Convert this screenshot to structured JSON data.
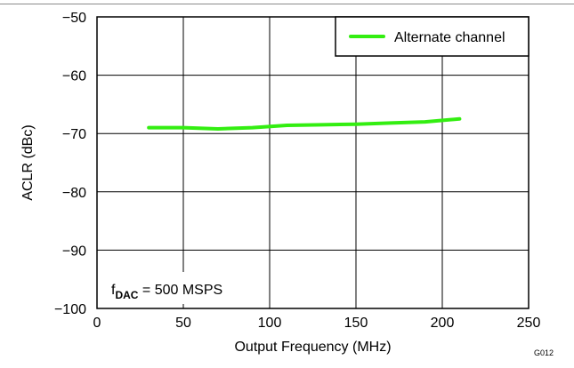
{
  "chart_data": {
    "type": "line",
    "xlabel": "Output Frequency (MHz)",
    "ylabel": "ACLR (dBc)",
    "xlim": [
      0,
      250
    ],
    "ylim": [
      -100,
      -50
    ],
    "xticks": [
      0,
      50,
      100,
      150,
      200,
      250
    ],
    "yticks": [
      -50,
      -60,
      -70,
      -80,
      -90,
      -100
    ],
    "x_tick_labels": [
      "0",
      "50",
      "100",
      "150",
      "200",
      "250"
    ],
    "y_tick_labels": [
      "−50",
      "−60",
      "−70",
      "−80",
      "−90",
      "−100"
    ],
    "grid": true,
    "legend_position": "top-right",
    "series": [
      {
        "name": "Alternate channel",
        "color": "#33ee11",
        "x": [
          30,
          50,
          70,
          90,
          110,
          130,
          150,
          170,
          190,
          210
        ],
        "y": [
          -69.0,
          -69.0,
          -69.2,
          -69.0,
          -68.6,
          -68.5,
          -68.4,
          -68.2,
          -68.0,
          -67.5
        ]
      }
    ],
    "annotation": {
      "prefix": "f",
      "subscript": "DAC",
      "text": " = 500 MSPS"
    },
    "figure_id": "G012"
  }
}
